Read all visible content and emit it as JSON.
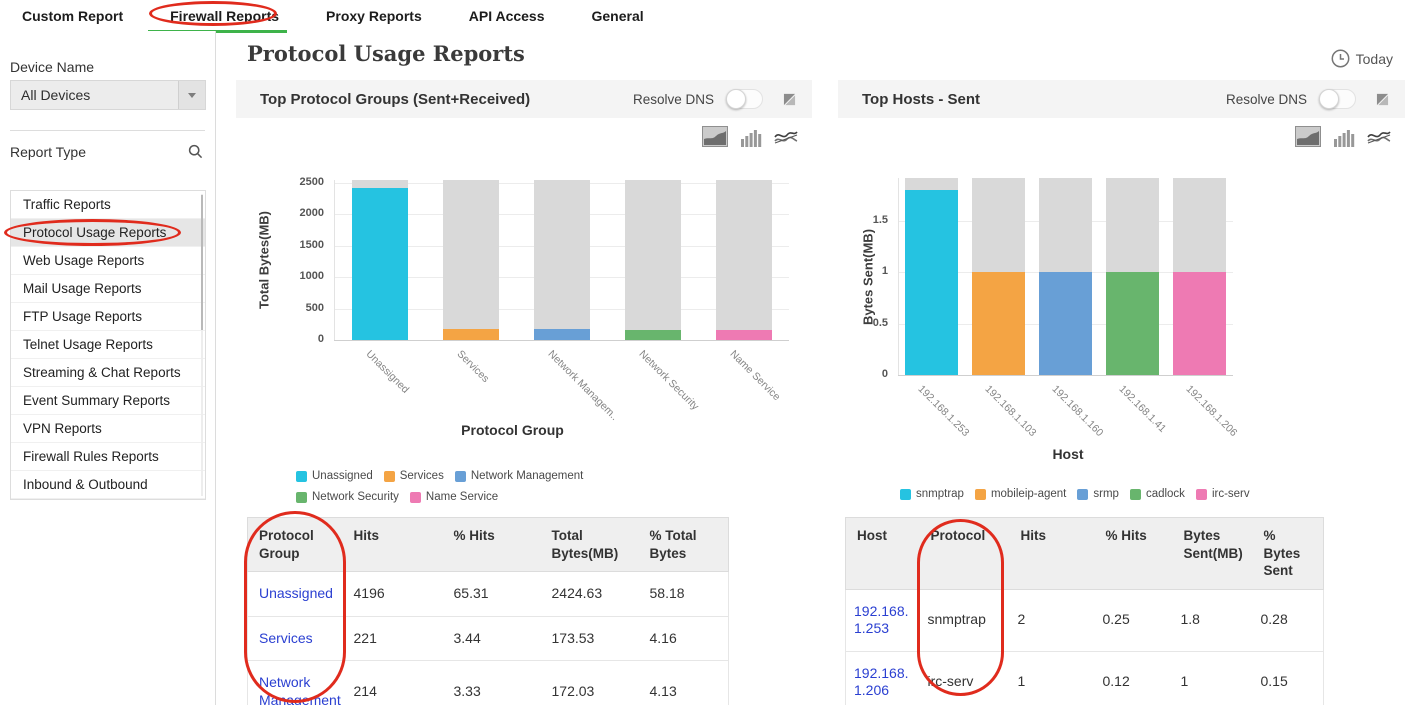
{
  "nav": {
    "tabs": [
      "Custom Report",
      "Firewall Reports",
      "Proxy Reports",
      "API Access",
      "General"
    ],
    "active_tab": "Firewall Reports",
    "active_underline_color": "#3eb34a"
  },
  "sidebar": {
    "device_name_label": "Device Name",
    "device_select_value": "All Devices",
    "report_type_label": "Report Type",
    "report_types": [
      "Traffic Reports",
      "Protocol Usage Reports",
      "Web Usage Reports",
      "Mail Usage Reports",
      "FTP Usage Reports",
      "Telnet Usage Reports",
      "Streaming & Chat Reports",
      "Event Summary Reports",
      "VPN Reports",
      "Firewall Rules Reports",
      "Inbound & Outbound"
    ],
    "selected_report_type": "Protocol Usage Reports"
  },
  "header": {
    "title": "Protocol Usage Reports",
    "time_filter_label": "Today"
  },
  "panels": [
    {
      "title": "Top Protocol Groups (Sent+Received)",
      "toggle_label": "Resolve DNS",
      "toggle_state": "off",
      "chart_data": {
        "type": "bar",
        "categories": [
          "Unassigned",
          "Services",
          "Network Managem..",
          "Network Security",
          "Name Service"
        ],
        "values": [
          2424.63,
          173.53,
          172.03,
          165,
          160
        ],
        "bar_colors": [
          "#25c3e1",
          "#f4a444",
          "#689fd6",
          "#68b56d",
          "#ee7ab3"
        ],
        "background_bar_color": "#d9d9d9",
        "background_bar_value": 2548,
        "ylabel": "Total Bytes(MB)",
        "xlabel": "Protocol Group",
        "y_ticks": [
          0,
          500,
          1000,
          1500,
          2000,
          2500
        ],
        "ylim": [
          0,
          2548
        ],
        "grid": true
      },
      "legend": [
        {
          "label": "Unassigned",
          "color": "#25c3e1"
        },
        {
          "label": "Services",
          "color": "#f4a444"
        },
        {
          "label": "Network Management",
          "color": "#689fd6"
        },
        {
          "label": "Network Security",
          "color": "#68b56d"
        },
        {
          "label": "Name Service",
          "color": "#ee7ab3"
        }
      ],
      "table": {
        "headers": [
          "Protocol Group",
          "Hits",
          "% Hits",
          "Total Bytes(MB)",
          "% Total Bytes"
        ],
        "link_column": 0,
        "rows": [
          [
            "Unassigned",
            "4196",
            "65.31",
            "2424.63",
            "58.18"
          ],
          [
            "Services",
            "221",
            "3.44",
            "173.53",
            "4.16"
          ],
          [
            "Network Management",
            "214",
            "3.33",
            "172.03",
            "4.13"
          ]
        ]
      }
    },
    {
      "title": "Top Hosts - Sent",
      "toggle_label": "Resolve DNS",
      "toggle_state": "off",
      "chart_data": {
        "type": "bar",
        "categories": [
          "192.168.1.253",
          "192.168.1.103",
          "192.168.1.160",
          "192.168.1.41",
          "192.168.1.206"
        ],
        "values": [
          1.8,
          1,
          1,
          1,
          1
        ],
        "bar_colors": [
          "#25c3e1",
          "#f4a444",
          "#689fd6",
          "#68b56d",
          "#ee7ab3"
        ],
        "background_bar_color": "#d9d9d9",
        "background_bar_value": 1.91,
        "ylabel": "Bytes Sent(MB)",
        "xlabel": "Host",
        "y_ticks": [
          0,
          0.5,
          1,
          1.5
        ],
        "ylim": [
          0,
          1.91
        ],
        "grid": true
      },
      "legend": [
        {
          "label": "snmptrap",
          "color": "#25c3e1"
        },
        {
          "label": "mobileip-agent",
          "color": "#f4a444"
        },
        {
          "label": "srmp",
          "color": "#689fd6"
        },
        {
          "label": "cadlock",
          "color": "#68b56d"
        },
        {
          "label": "irc-serv",
          "color": "#ee7ab3"
        }
      ],
      "table": {
        "headers": [
          "Host",
          "Protocol",
          "Hits",
          "% Hits",
          "Bytes Sent(MB)",
          "% Bytes Sent"
        ],
        "link_column": 0,
        "rows": [
          [
            "192.168.1.253",
            "snmptrap",
            "2",
            "0.25",
            "1.8",
            "0.28"
          ],
          [
            "192.168.1.206",
            "irc-serv",
            "1",
            "0.12",
            "1",
            "0.15"
          ]
        ]
      }
    }
  ],
  "annotations": {
    "color": "#e02b1d",
    "circled_items": [
      "Firewall Reports tab",
      "Protocol Usage Reports sidebar item",
      "Protocol Group table column",
      "Protocol table column"
    ]
  }
}
